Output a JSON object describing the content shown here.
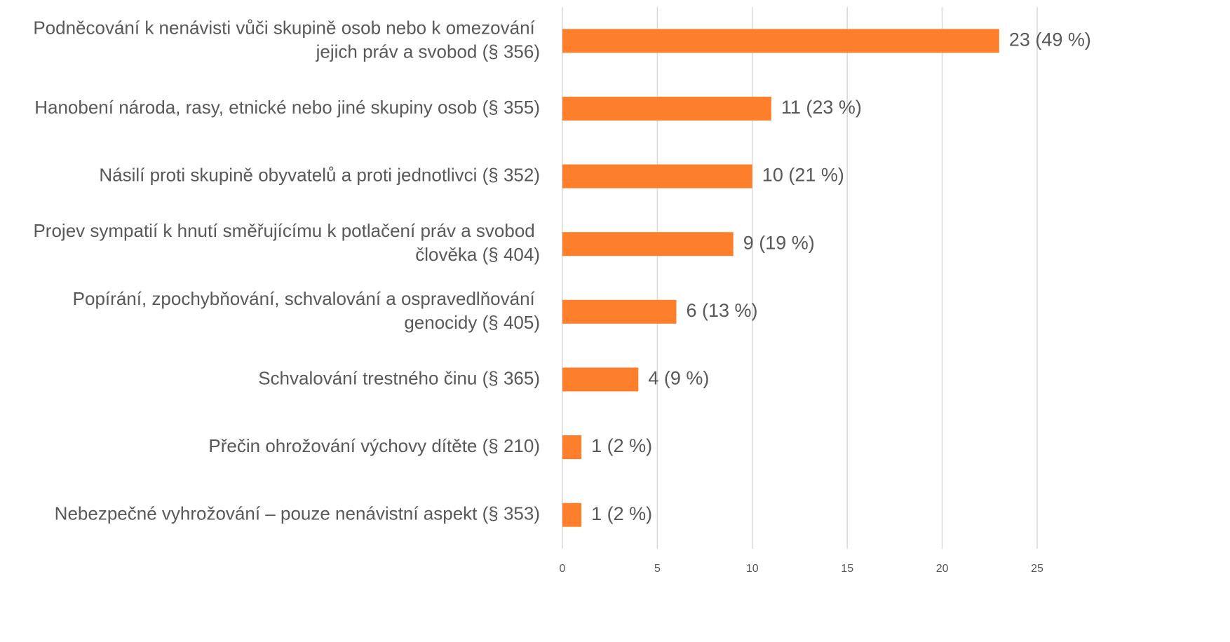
{
  "chart_data": {
    "type": "barh",
    "categories": [
      "Podněcování k nenávisti vůči skupině osob nebo k omezování jejich práv a svobod (§ 356)",
      "Hanobení národa, rasy, etnické nebo jiné skupiny osob (§ 355)",
      "Násilí proti skupině obyvatelů a proti jednotlivci (§ 352)",
      "Projev sympatií k hnutí směřujícímu k potlačení práv a svobod člověka (§ 404)",
      "Popírání, zpochybňování, schvalování a ospravedlňování genocidy (§ 405)",
      "Schvalování trestného činu (§ 365)",
      "Přečin ohrožování výchovy dítěte (§ 210)",
      "Nebezpečné vyhrožování – pouze nenávistní aspekt (§ 353)"
    ],
    "values": [
      23,
      11,
      10,
      9,
      6,
      4,
      1,
      1
    ],
    "value_labels": [
      "23 (49 %)",
      "11 (23 %)",
      "10 (21 %)",
      "9 (19 %)",
      "6 (13 %)",
      "4 (9 %)",
      "1 (2 %)",
      "1 (2 %)"
    ],
    "color": "#fd7f2c",
    "xlim": [
      0,
      25
    ],
    "xticks": [
      0,
      5,
      10,
      15,
      20,
      25
    ],
    "grid": true
  }
}
